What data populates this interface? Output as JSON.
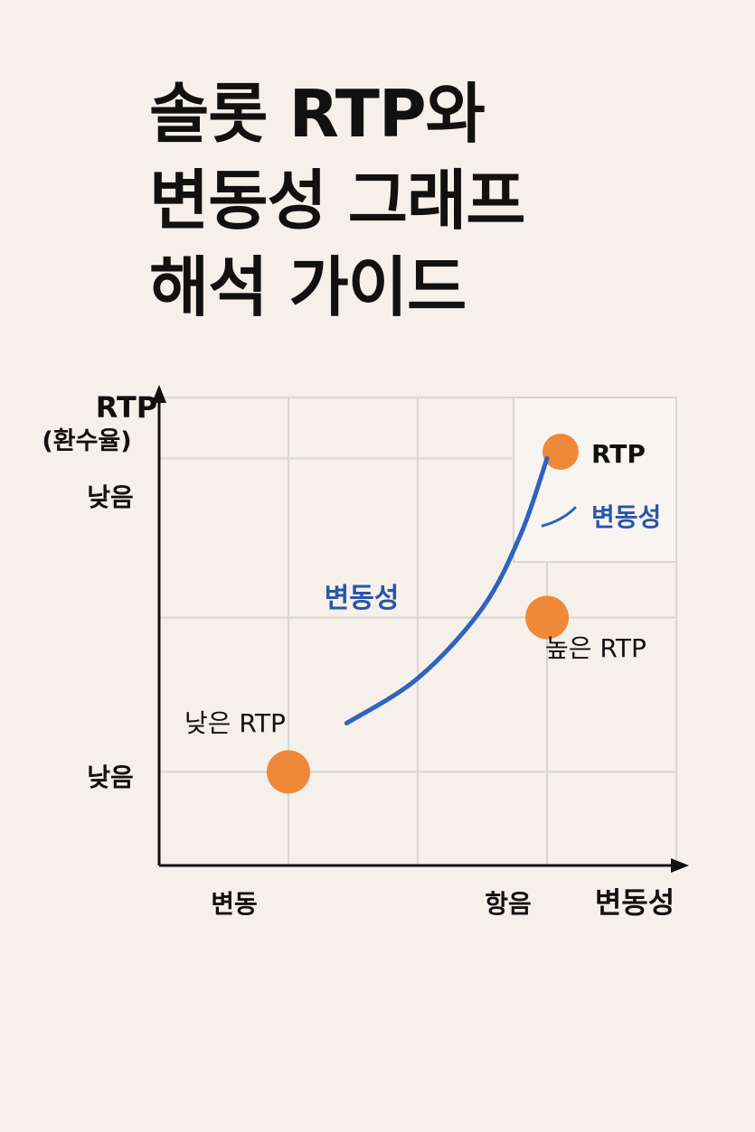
{
  "title": {
    "line1": "솔롯 RTP와",
    "line2": "변동성 그래프",
    "line3": "해석 가이드"
  },
  "colors": {
    "background": "#f5f0ea",
    "point": "#f0883a",
    "curve": "#2f63c0",
    "curve_label": "#2a55a8",
    "grid": "#d8d6d2",
    "axis": "#111111"
  },
  "chart_data": {
    "type": "scatter",
    "title": "솔롯 RTP와 변동성 그래프 해석 가이드",
    "ylabel": "RTP",
    "ylabel_sub": "(환수율)",
    "xlabel": "변동성",
    "y_ticks": [
      "낮음",
      "낮음"
    ],
    "x_ticks": [
      "변동",
      "항음"
    ],
    "grid": true,
    "legend": {
      "placement": "top-right",
      "items": [
        {
          "label": "RTP",
          "marker": "circle",
          "color": "#f0883a"
        },
        {
          "label": "변동성",
          "marker": "line",
          "color": "#2f63c0"
        }
      ]
    },
    "points": [
      {
        "label": "낮은 RTP",
        "x": 1,
        "y": 1
      },
      {
        "label": "높은 RTP",
        "x": 3,
        "y": 2.65
      }
    ],
    "series": [
      {
        "name": "변동성",
        "type": "line",
        "x": [
          1.45,
          2.0,
          2.5,
          2.8,
          3.0
        ],
        "y": [
          1.52,
          2.0,
          2.75,
          3.55,
          4.35
        ]
      }
    ],
    "curve_annotation": "변동성",
    "xlim": [
      0,
      4
    ],
    "ylim": [
      0,
      5
    ]
  }
}
